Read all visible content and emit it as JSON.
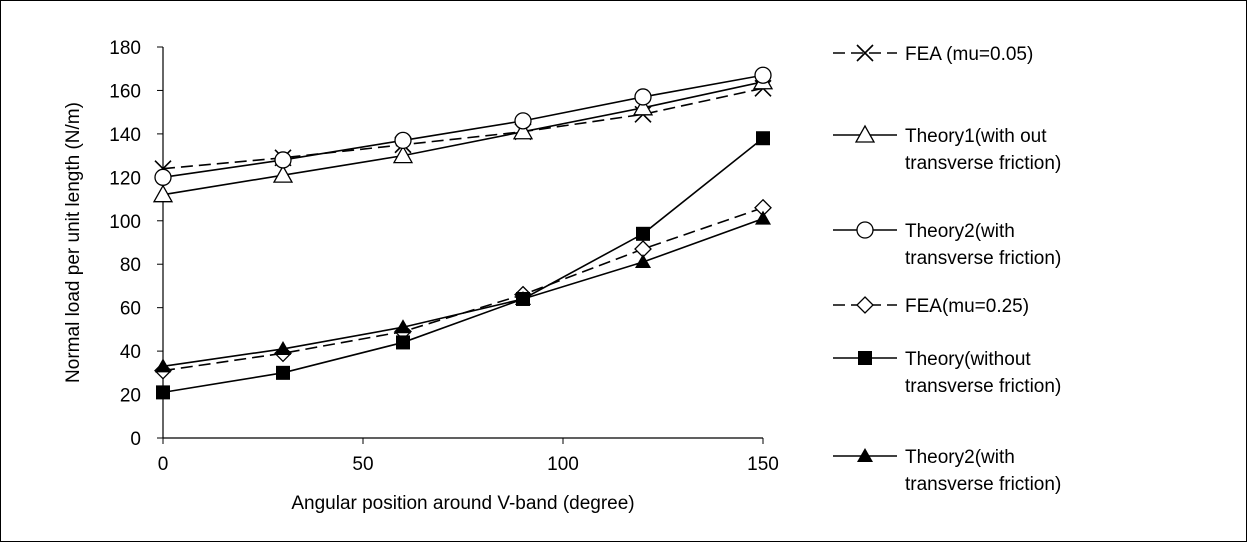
{
  "chart_data": {
    "type": "line",
    "title": "",
    "xlabel": "Angular position around V-band (degree)",
    "ylabel": "Normal load per unit length (N/m)",
    "xlim": [
      0,
      150
    ],
    "ylim": [
      0,
      180
    ],
    "x_ticks": [
      0,
      50,
      100,
      150
    ],
    "y_ticks": [
      0,
      20,
      40,
      60,
      80,
      100,
      120,
      140,
      160,
      180
    ],
    "grid": false,
    "legend_position": "right",
    "x": [
      0,
      30,
      60,
      90,
      120,
      150
    ],
    "series": [
      {
        "name": "FEA (mu=0.05)",
        "name_lines": [
          "FEA (mu=0.05)"
        ],
        "marker": "x",
        "dashed": true,
        "values": [
          124,
          129,
          135,
          141,
          149,
          161
        ]
      },
      {
        "name": "Theory1(with out transverse friction)",
        "name_lines": [
          "Theory1(with out",
          "transverse friction)"
        ],
        "marker": "open-triangle",
        "dashed": false,
        "values": [
          112,
          121,
          130,
          141,
          152,
          164
        ]
      },
      {
        "name": "Theory2(with transverse friction)",
        "name_lines": [
          "Theory2(with",
          "transverse friction)"
        ],
        "marker": "open-circle",
        "dashed": false,
        "values": [
          120,
          128,
          137,
          146,
          157,
          167
        ]
      },
      {
        "name": "FEA(mu=0.25)",
        "name_lines": [
          "FEA(mu=0.25)"
        ],
        "marker": "open-diamond",
        "dashed": true,
        "values": [
          31,
          39,
          49,
          66,
          87,
          106
        ]
      },
      {
        "name": "Theory(without transverse friction)",
        "name_lines": [
          "Theory(without",
          "transverse friction)"
        ],
        "marker": "filled-square",
        "dashed": false,
        "values": [
          21,
          30,
          44,
          64,
          94,
          138
        ]
      },
      {
        "name": "Theory2(with transverse friction)",
        "name_lines": [
          "Theory2(with",
          "transverse friction)"
        ],
        "marker": "filled-triangle",
        "dashed": false,
        "values": [
          33,
          41,
          51,
          64,
          81,
          101
        ]
      }
    ],
    "colors": {
      "line": "#000000",
      "background": "#ffffff"
    }
  }
}
